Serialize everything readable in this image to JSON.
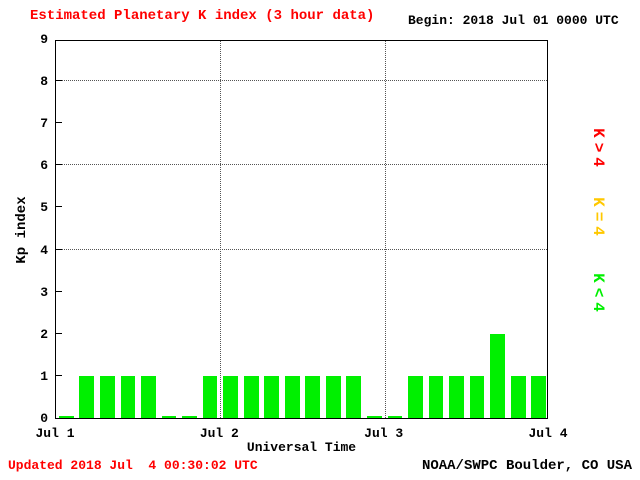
{
  "title": "Estimated Planetary K index (3 hour data)",
  "header": {
    "begin_label": "Begin: 2018 Jul 01 0000 UTC"
  },
  "footer": {
    "updated": "Updated 2018 Jul  4 00:30:02 UTC",
    "source": "NOAA/SWPC Boulder, CO USA"
  },
  "colors": {
    "title": "#ff0000",
    "updated": "#ff0000",
    "bar_low": "#00f000",
    "bar_mid": "#ffc800",
    "bar_high": "#ff0000",
    "grid": "#555555",
    "axis": "#000000"
  },
  "legend": [
    {
      "label": "K>4",
      "color": "#ff0000"
    },
    {
      "label": "K=4",
      "color": "#ffc800"
    },
    {
      "label": "K<4",
      "color": "#00f000"
    }
  ],
  "chart_data": {
    "type": "bar",
    "title": "Estimated Planetary K index (3 hour data)",
    "xlabel": "Universal Time",
    "ylabel": "Kp index",
    "ylim": [
      0,
      9
    ],
    "y_ticks": [
      0,
      1,
      2,
      3,
      4,
      5,
      6,
      7,
      8,
      9
    ],
    "x_tick_labels": [
      "Jul 1",
      "Jul 2",
      "Jul 3",
      "Jul 4"
    ],
    "interval_hours": 3,
    "begin": "2018 Jul 01 0000 UTC",
    "values": [
      0,
      1,
      1,
      1,
      1,
      0,
      0,
      1,
      1,
      1,
      1,
      1,
      1,
      1,
      1,
      0,
      0,
      1,
      1,
      1,
      1,
      2,
      1,
      1
    ],
    "grid_y": [
      4,
      6,
      8
    ],
    "grid_x_days": [
      1,
      2
    ],
    "grid": true,
    "legend_position": "right"
  }
}
